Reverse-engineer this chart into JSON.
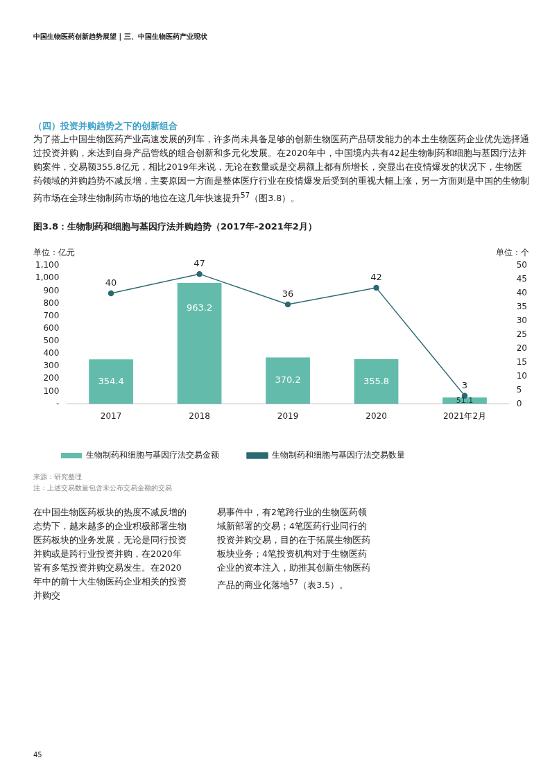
{
  "chart_data": {
    "type": "bar",
    "title": "图3.8：生物制药和细胞与基因疗法并购趋势（2017年-2021年2月）",
    "ylabel": "单位：亿元",
    "y2label": "单位：个",
    "categories": [
      "2017",
      "2018",
      "2019",
      "2020",
      "2021年2月"
    ],
    "series": [
      {
        "name": "生物制药和细胞与基因疗法交易金额",
        "color": "#63bcab",
        "values": [
          354.4,
          963.2,
          370.2,
          355.8,
          51.1
        ]
      },
      {
        "type": "line",
        "name": "生物制药和细胞与基因疗法交易数量",
        "color": "#2b6a73",
        "axis": "y2",
        "marker": "circle",
        "values": [
          40,
          47,
          36,
          42,
          3
        ]
      }
    ],
    "ylim": [
      0,
      1100
    ],
    "yticks": [
      {
        "value": 0,
        "label": "-"
      },
      100,
      200,
      300,
      400,
      500,
      600,
      700,
      800,
      900,
      {
        "value": 1000,
        "label": "1,000"
      },
      {
        "value": 1100,
        "label": "1,100"
      }
    ],
    "y2lim": [
      0,
      50
    ],
    "y2ticks": [
      0,
      5,
      10,
      15,
      20,
      25,
      30,
      35,
      40,
      45,
      50
    ],
    "data_labels": true,
    "grid": false,
    "legend": "bottom",
    "annotations": [
      "中国生物医药创新趋势展望 | 三、中国生物医药产业现状",
      "（四）投资并购趋势之下的创新组合",
      "为了搭上中国生物医药产业高速发展的列车，许多尚未具备足够的创新生物医药产品研发能力的本土生物医药企业优先选择通过投资并购，来达到自身产品管线的组合创新和多元化发展。在2020年中，中国境内共有42起生物制药和细胞与基因疗法并购案件，交易额355.8亿元，相比2019年来说，无论在数量或是交易额上都有所增长，突显出在疫情爆发的状况下，生物医药领域的并购趋势不减反增，主要原因一方面是整体医疗行业在疫情爆发后受到的重视大幅上涨，另一方面则是中国的生物制药市场在全球生物制药市场的地位在这几年快速提升$^{57}$（图3.8）。",
      "来源：研究整理",
      "注：上述交易数量包含未公布交易金额的交易",
      "在中国生物医药板块的热度不减反增的态势下，越来越多的企业积极部署生物医药板块的业务发展，无论是同行投资并购或是跨行业投资并购，在2020年皆有多笔投资并购交易发生。在2020年中的前十大生物医药企业相关的投资并购交",
      "易事件中，有2笔跨行业的生物医药领域新部署的交易；4笔医药行业同行的投资并购交易，目的在于拓展生物医药板块业务；4笔投资机构对于生物医药企业的资本注入，助推其创新生物医药产品的商业化落地$^{57}$（表3.5）。",
      "45"
    ]
  }
}
